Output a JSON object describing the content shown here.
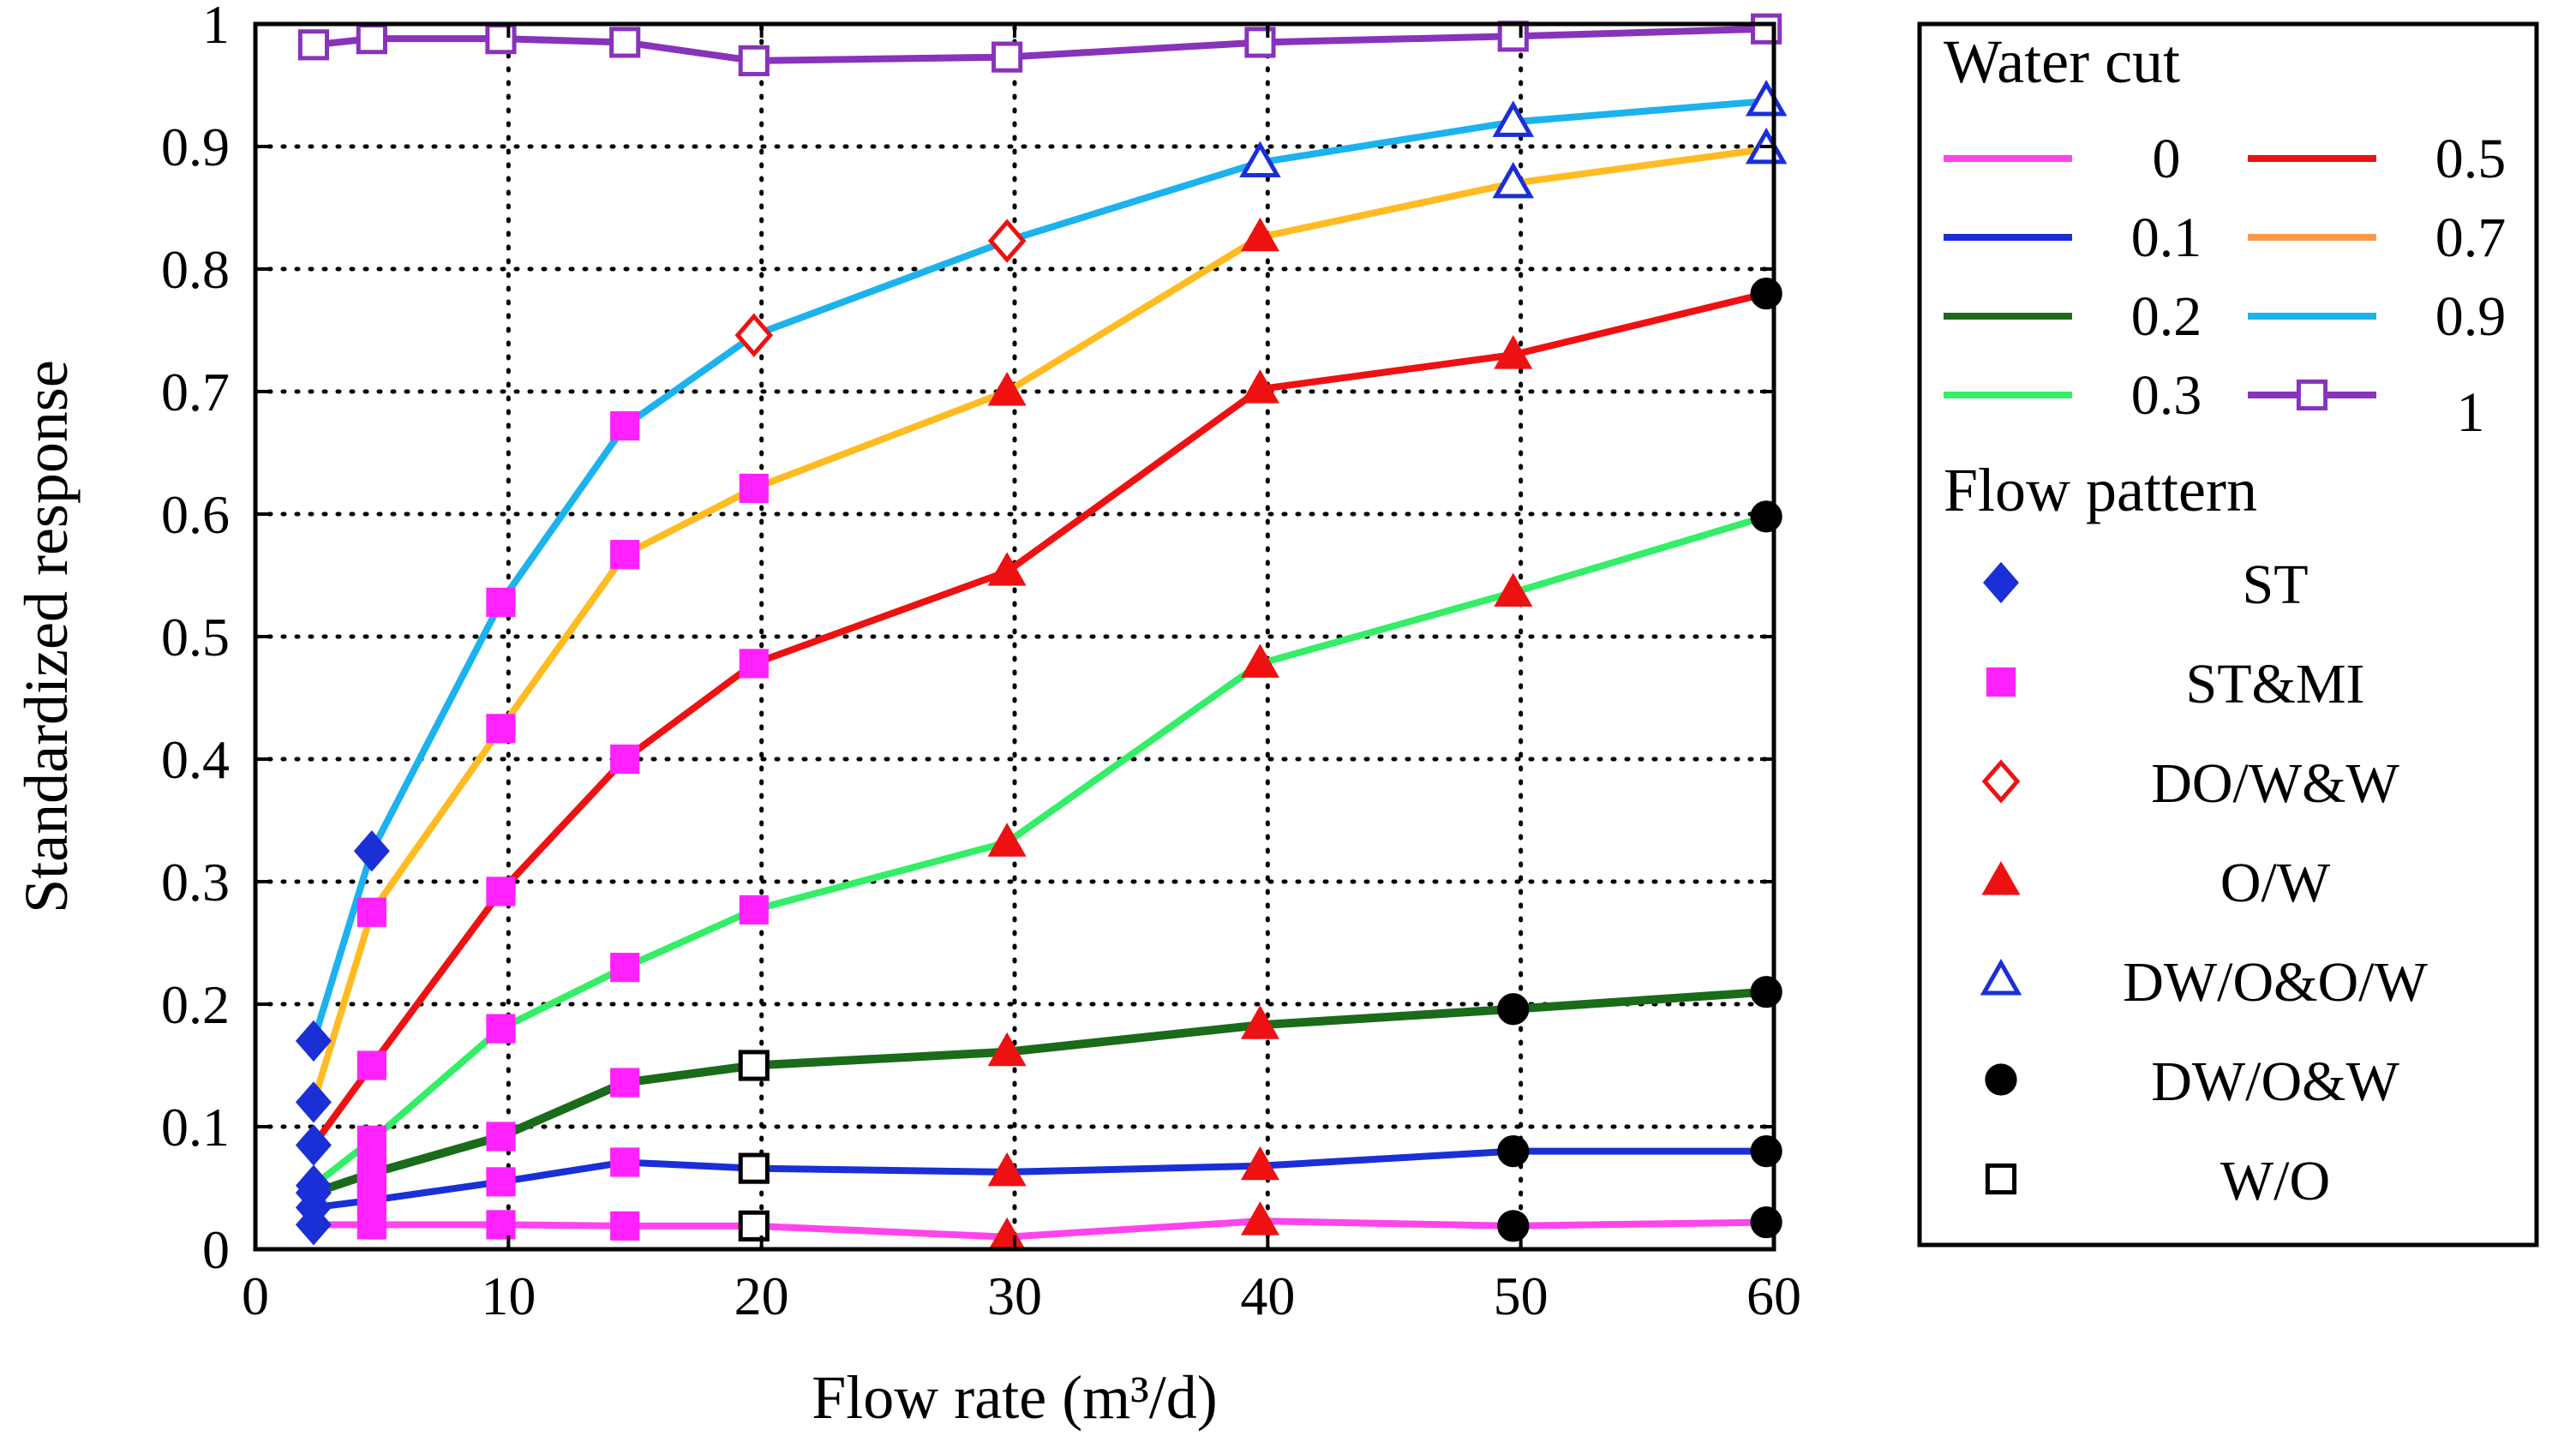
{
  "chart_data": {
    "type": "line",
    "title": "",
    "xlabel": "Flow rate (m³/d)",
    "ylabel": "Standardized response",
    "xlim": [
      0,
      60
    ],
    "ylim": [
      0,
      1
    ],
    "xticks": [
      0,
      10,
      20,
      30,
      40,
      50,
      60
    ],
    "yticks": [
      0,
      0.1,
      0.2,
      0.3,
      0.4,
      0.5,
      0.6,
      0.7,
      0.8,
      0.9,
      1
    ],
    "xtick_labels": [
      "0",
      "10",
      "20",
      "30",
      "40",
      "50",
      "60"
    ],
    "ytick_labels": [
      "0",
      "0.1",
      "0.2",
      "0.3",
      "0.4",
      "0.5",
      "0.6",
      "0.7",
      "0.8",
      "0.9",
      "1"
    ],
    "grid": "dotted, at x = 10..60 and y = 0.1..0.9",
    "legend_position": "right, outside plot",
    "legend": {
      "water_cut_title": "Water cut",
      "flow_pattern_title": "Flow pattern",
      "water_cut_entries": [
        "0",
        "0.1",
        "0.2",
        "0.3",
        "0.5",
        "0.7",
        "0.9",
        "1"
      ],
      "flow_pattern_entries": [
        {
          "key": "ST",
          "label": "ST",
          "marker": "diamond",
          "fill": "#1a2fd6",
          "stroke": "#1a2fd6"
        },
        {
          "key": "STMI",
          "label": "ST&MI",
          "marker": "square",
          "fill": "#ff22ff",
          "stroke": "#ff22ff"
        },
        {
          "key": "DOWW",
          "label": "DO/W&W",
          "marker": "diamond",
          "fill": "none",
          "stroke": "#ee1111"
        },
        {
          "key": "OW",
          "label": "O/W",
          "marker": "triangle",
          "fill": "#ee1111",
          "stroke": "#ee1111"
        },
        {
          "key": "DWOOW",
          "label": "DW/O&O/W",
          "marker": "triangle",
          "fill": "none",
          "stroke": "#1a2fd6"
        },
        {
          "key": "DWOW",
          "label": "DW/O&W",
          "marker": "circle",
          "fill": "#000000",
          "stroke": "#000000"
        },
        {
          "key": "WO",
          "label": "W/O",
          "marker": "square",
          "fill": "none",
          "stroke": "#000000"
        }
      ]
    },
    "series": [
      {
        "name": "0",
        "color": "#ff44ee",
        "points": [
          [
            2.3,
            0.02
          ],
          [
            4.6,
            0.02
          ],
          [
            9.7,
            0.02
          ],
          [
            14.6,
            0.019
          ],
          [
            19.7,
            0.019
          ],
          [
            29.7,
            0.01
          ],
          [
            39.7,
            0.023
          ],
          [
            49.7,
            0.019
          ],
          [
            59.7,
            0.022
          ]
        ],
        "markers": [
          "ST",
          "STMI",
          "STMI",
          "STMI",
          "WO",
          "OW",
          "OW",
          "DWOW",
          "DWOW"
        ]
      },
      {
        "name": "0.1",
        "color": "#1a2fd6",
        "points": [
          [
            2.3,
            0.034
          ],
          [
            4.6,
            0.04
          ],
          [
            9.7,
            0.055
          ],
          [
            14.6,
            0.071
          ],
          [
            19.7,
            0.066
          ],
          [
            29.7,
            0.063
          ],
          [
            39.7,
            0.068
          ],
          [
            49.7,
            0.08
          ],
          [
            59.7,
            0.08
          ]
        ],
        "markers": [
          "ST",
          "STMI",
          "STMI",
          "STMI",
          "WO",
          "OW",
          "OW",
          "DWOW",
          "DWOW"
        ]
      },
      {
        "name": "0.2",
        "color": "#1a6b1a",
        "points": [
          [
            2.3,
            0.046
          ],
          [
            4.6,
            0.062
          ],
          [
            9.7,
            0.092
          ],
          [
            14.6,
            0.136
          ],
          [
            19.7,
            0.15
          ],
          [
            29.7,
            0.161
          ],
          [
            39.7,
            0.183
          ],
          [
            49.7,
            0.196
          ],
          [
            59.7,
            0.21
          ]
        ],
        "markers": [
          "ST",
          "STMI",
          "STMI",
          "STMI",
          "WO",
          "OW",
          "OW",
          "DWOW",
          "DWOW"
        ]
      },
      {
        "name": "0.3",
        "color": "#33ee66",
        "points": [
          [
            2.3,
            0.052
          ],
          [
            4.6,
            0.089
          ],
          [
            9.7,
            0.18
          ],
          [
            14.6,
            0.23
          ],
          [
            19.7,
            0.277
          ],
          [
            29.7,
            0.332
          ],
          [
            39.7,
            0.478
          ],
          [
            49.7,
            0.536
          ],
          [
            59.7,
            0.598
          ]
        ],
        "markers": [
          "ST",
          "STMI",
          "STMI",
          "STMI",
          "STMI",
          "OW",
          "OW",
          "OW",
          "DWOW"
        ]
      },
      {
        "name": "0.5",
        "color": "#ee1111",
        "points": [
          [
            2.3,
            0.085
          ],
          [
            4.6,
            0.15
          ],
          [
            9.7,
            0.292
          ],
          [
            14.6,
            0.4
          ],
          [
            19.7,
            0.478
          ],
          [
            29.7,
            0.553
          ],
          [
            39.7,
            0.702
          ],
          [
            49.7,
            0.73
          ],
          [
            59.7,
            0.78
          ]
        ],
        "markers": [
          "ST",
          "STMI",
          "STMI",
          "STMI",
          "STMI",
          "OW",
          "OW",
          "OW",
          "DWOW"
        ]
      },
      {
        "name": "0.7",
        "color": "#ffbb22",
        "points": [
          [
            2.3,
            0.12
          ],
          [
            4.6,
            0.275
          ],
          [
            9.7,
            0.425
          ],
          [
            14.6,
            0.567
          ],
          [
            19.7,
            0.621
          ],
          [
            29.7,
            0.7
          ],
          [
            39.7,
            0.826
          ],
          [
            49.7,
            0.87
          ],
          [
            59.7,
            0.898
          ]
        ],
        "markers": [
          "ST",
          "STMI",
          "STMI",
          "STMI",
          "STMI",
          "OW",
          "OW",
          "DWOOW",
          "DWOOW"
        ]
      },
      {
        "name": "0.9",
        "color": "#1cb2ee",
        "points": [
          [
            2.3,
            0.17
          ],
          [
            4.6,
            0.325
          ],
          [
            9.7,
            0.528
          ],
          [
            14.6,
            0.672
          ],
          [
            19.7,
            0.746
          ],
          [
            29.7,
            0.823
          ],
          [
            39.7,
            0.887
          ],
          [
            49.7,
            0.92
          ],
          [
            59.7,
            0.937
          ]
        ],
        "markers": [
          "ST",
          "ST",
          "STMI",
          "STMI",
          "DOWW",
          "DOWW",
          "DWOOW",
          "DWOOW",
          "DWOOW"
        ]
      },
      {
        "name": "1",
        "color": "#8833bb",
        "points": [
          [
            2.3,
            0.983
          ],
          [
            4.6,
            0.988
          ],
          [
            9.7,
            0.988
          ],
          [
            14.6,
            0.985
          ],
          [
            19.7,
            0.97
          ],
          [
            29.7,
            0.973
          ],
          [
            39.7,
            0.985
          ],
          [
            49.7,
            0.99
          ],
          [
            59.7,
            0.996
          ]
        ],
        "markers": [
          "OPEN_PURPLE",
          "OPEN_PURPLE",
          "OPEN_PURPLE",
          "OPEN_PURPLE",
          "OPEN_PURPLE",
          "OPEN_PURPLE",
          "OPEN_PURPLE",
          "OPEN_PURPLE",
          "OPEN_PURPLE"
        ]
      }
    ],
    "extra_markers": [
      {
        "x": 4.6,
        "y": 0.055,
        "marker": "STMI"
      },
      {
        "x": 4.6,
        "y": 0.07,
        "marker": "STMI"
      }
    ]
  }
}
